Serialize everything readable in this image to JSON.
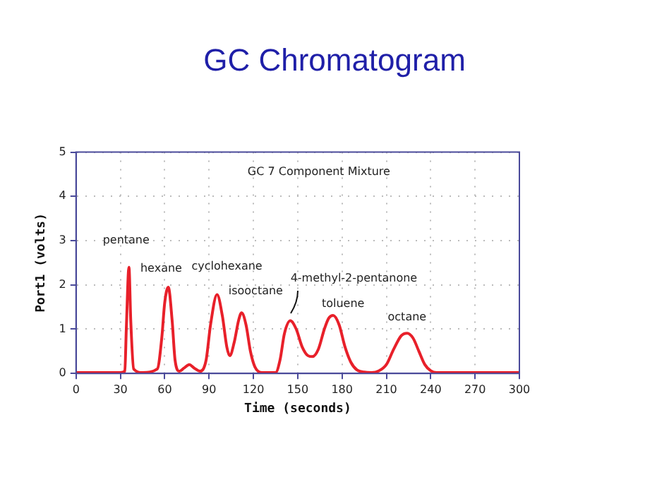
{
  "chart_data": {
    "type": "line",
    "title": "GC Chromatogram",
    "subtitle": "GC 7 Component Mixture",
    "xlabel": "Time (seconds)",
    "ylabel": "Port1 (volts)",
    "x": [
      0,
      30,
      33,
      34,
      35.8,
      37,
      39,
      45,
      55,
      58,
      60,
      62.4,
      65,
      67,
      70,
      73,
      76.6,
      80,
      84,
      88,
      91,
      95.4,
      99,
      102,
      104,
      107,
      110,
      112,
      115,
      118,
      121,
      126,
      135,
      138,
      141,
      145,
      149,
      153,
      157,
      160,
      164,
      168,
      171,
      174,
      178,
      182,
      186,
      190,
      195,
      200,
      205,
      210,
      215,
      220,
      224,
      228,
      232,
      236,
      240,
      244,
      300
    ],
    "series": [
      {
        "color": "#e8202a",
        "values": [
          0.02,
          0.02,
          0.05,
          1.0,
          2.4,
          1.2,
          0.1,
          0.02,
          0.1,
          0.8,
          1.6,
          1.95,
          1.2,
          0.3,
          0.05,
          0.12,
          0.2,
          0.12,
          0.05,
          0.3,
          1.1,
          1.78,
          1.3,
          0.6,
          0.4,
          0.7,
          1.2,
          1.37,
          1.1,
          0.5,
          0.15,
          0.02,
          0.02,
          0.3,
          0.9,
          1.19,
          1.0,
          0.6,
          0.4,
          0.38,
          0.55,
          1.0,
          1.25,
          1.31,
          1.1,
          0.6,
          0.25,
          0.08,
          0.03,
          0.02,
          0.06,
          0.2,
          0.55,
          0.85,
          0.91,
          0.8,
          0.5,
          0.2,
          0.06,
          0.02,
          0.02
        ]
      }
    ],
    "xlim": [
      0,
      300
    ],
    "xticks": [
      0,
      30,
      60,
      90,
      120,
      150,
      180,
      210,
      240,
      270,
      300
    ],
    "ylim": [
      0,
      5
    ],
    "yticks": [
      0,
      1,
      2,
      3,
      4,
      5
    ],
    "grid": true,
    "legend": false,
    "marker": "none",
    "line_style": "solid",
    "annotations": [
      {
        "text": "pentane",
        "x": 35.8,
        "y": 2.4
      },
      {
        "text": "hexane",
        "x": 62.4,
        "y": 1.95
      },
      {
        "text": "cyclohexane",
        "x": 95.4,
        "y": 1.78
      },
      {
        "text": "isooctane",
        "x": 112,
        "y": 1.37
      },
      {
        "text": "4-methyl-2-pentanone",
        "x": 145,
        "y": 1.19
      },
      {
        "text": "toluene",
        "x": 174,
        "y": 1.31
      },
      {
        "text": "octane",
        "x": 224,
        "y": 0.91
      }
    ]
  }
}
